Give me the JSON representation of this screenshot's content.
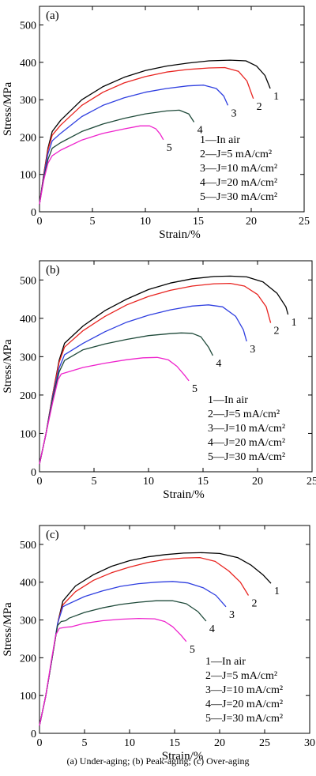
{
  "caption": "(a) Under-aging; (b) Peak-aging; (c) Over-aging",
  "legend_items": [
    "1—In air",
    "2—J=5 mA/cm²",
    "3—J=10 mA/cm²",
    "4—J=20 mA/cm²",
    "5—J=30 mA/cm²"
  ],
  "colors": [
    "#000000",
    "#e8231f",
    "#2f3fe0",
    "#1f4a3a",
    "#ee22cc"
  ],
  "chart_data": [
    {
      "type": "line",
      "panel_label": "(a)",
      "xlabel": "Strain/%",
      "ylabel": "Stress/MPa",
      "xlim": [
        0,
        25
      ],
      "ylim": [
        0,
        550
      ],
      "xticks": [
        0,
        5,
        10,
        15,
        20,
        25
      ],
      "yticks": [
        0,
        100,
        200,
        300,
        400,
        500
      ],
      "series": [
        {
          "label": "1",
          "points": [
            [
              0,
              20
            ],
            [
              0.4,
              100
            ],
            [
              0.8,
              170
            ],
            [
              1.2,
              215
            ],
            [
              2,
              245
            ],
            [
              4,
              300
            ],
            [
              6,
              335
            ],
            [
              8,
              360
            ],
            [
              10,
              378
            ],
            [
              12,
              390
            ],
            [
              14,
              398
            ],
            [
              16,
              404
            ],
            [
              18,
              406
            ],
            [
              19.5,
              404
            ],
            [
              20.5,
              390
            ],
            [
              21.3,
              365
            ],
            [
              21.8,
              330
            ]
          ]
        },
        {
          "label": "2",
          "points": [
            [
              0,
              20
            ],
            [
              0.4,
              100
            ],
            [
              0.8,
              165
            ],
            [
              1.2,
              205
            ],
            [
              2,
              232
            ],
            [
              4,
              285
            ],
            [
              6,
              320
            ],
            [
              8,
              345
            ],
            [
              10,
              362
            ],
            [
              12,
              374
            ],
            [
              14,
              381
            ],
            [
              16,
              385
            ],
            [
              17.5,
              386
            ],
            [
              18.8,
              376
            ],
            [
              19.6,
              350
            ],
            [
              20.2,
              303
            ]
          ]
        },
        {
          "label": "3",
          "points": [
            [
              0,
              20
            ],
            [
              0.4,
              95
            ],
            [
              0.8,
              155
            ],
            [
              1.2,
              190
            ],
            [
              2,
              210
            ],
            [
              4,
              255
            ],
            [
              6,
              285
            ],
            [
              8,
              305
            ],
            [
              10,
              320
            ],
            [
              12,
              330
            ],
            [
              14,
              337
            ],
            [
              15.5,
              339
            ],
            [
              16.7,
              330
            ],
            [
              17.4,
              310
            ],
            [
              17.8,
              285
            ]
          ]
        },
        {
          "label": "4",
          "points": [
            [
              0,
              20
            ],
            [
              0.4,
              90
            ],
            [
              0.8,
              140
            ],
            [
              1.2,
              170
            ],
            [
              2,
              185
            ],
            [
              4,
              215
            ],
            [
              6,
              235
            ],
            [
              8,
              250
            ],
            [
              10,
              262
            ],
            [
              12,
              270
            ],
            [
              13.2,
              272
            ],
            [
              14.1,
              262
            ],
            [
              14.6,
              240
            ]
          ]
        },
        {
          "label": "5",
          "points": [
            [
              0,
              20
            ],
            [
              0.4,
              85
            ],
            [
              0.8,
              130
            ],
            [
              1.2,
              150
            ],
            [
              2,
              165
            ],
            [
              4,
              192
            ],
            [
              6,
              210
            ],
            [
              8,
              222
            ],
            [
              9.5,
              230
            ],
            [
              10.4,
              230
            ],
            [
              11,
              222
            ],
            [
              11.4,
              208
            ],
            [
              11.7,
              193
            ]
          ]
        }
      ],
      "end_labels": [
        {
          "text": "1",
          "x": 21.8,
          "y": 330
        },
        {
          "text": "2",
          "x": 20.2,
          "y": 303
        },
        {
          "text": "3",
          "x": 17.8,
          "y": 285
        },
        {
          "text": "4",
          "x": 14.6,
          "y": 240
        },
        {
          "text": "5",
          "x": 11.7,
          "y": 193
        }
      ]
    },
    {
      "type": "line",
      "panel_label": "(b)",
      "xlabel": "Strain/%",
      "ylabel": "Stress/MPa",
      "xlim": [
        0,
        25
      ],
      "ylim": [
        0,
        550
      ],
      "xticks": [
        0,
        5,
        10,
        15,
        20,
        25
      ],
      "yticks": [
        0,
        100,
        200,
        300,
        400,
        500
      ],
      "series": [
        {
          "label": "1",
          "points": [
            [
              0,
              20
            ],
            [
              0.6,
              100
            ],
            [
              1.2,
              200
            ],
            [
              1.8,
              290
            ],
            [
              2.3,
              335
            ],
            [
              4,
              380
            ],
            [
              6,
              420
            ],
            [
              8,
              450
            ],
            [
              10,
              475
            ],
            [
              12,
              492
            ],
            [
              14,
              503
            ],
            [
              16,
              509
            ],
            [
              17.5,
              510
            ],
            [
              19,
              508
            ],
            [
              20.5,
              495
            ],
            [
              21.8,
              465
            ],
            [
              22.6,
              430
            ],
            [
              22.8,
              410
            ]
          ]
        },
        {
          "label": "2",
          "points": [
            [
              0,
              20
            ],
            [
              0.6,
              100
            ],
            [
              1.2,
              200
            ],
            [
              1.8,
              285
            ],
            [
              2.3,
              325
            ],
            [
              4,
              368
            ],
            [
              6,
              405
            ],
            [
              8,
              435
            ],
            [
              10,
              457
            ],
            [
              12,
              473
            ],
            [
              14,
              484
            ],
            [
              16,
              490
            ],
            [
              17.5,
              491
            ],
            [
              18.8,
              484
            ],
            [
              20,
              462
            ],
            [
              20.8,
              430
            ],
            [
              21.2,
              388
            ]
          ]
        },
        {
          "label": "3",
          "points": [
            [
              0,
              20
            ],
            [
              0.6,
              100
            ],
            [
              1.2,
              195
            ],
            [
              1.8,
              270
            ],
            [
              2.3,
              305
            ],
            [
              4,
              335
            ],
            [
              6,
              365
            ],
            [
              8,
              390
            ],
            [
              10,
              408
            ],
            [
              12,
              422
            ],
            [
              14,
              432
            ],
            [
              15.5,
              435
            ],
            [
              16.8,
              430
            ],
            [
              18,
              405
            ],
            [
              18.7,
              370
            ],
            [
              19,
              340
            ]
          ]
        },
        {
          "label": "4",
          "points": [
            [
              0,
              20
            ],
            [
              0.6,
              100
            ],
            [
              1.2,
              190
            ],
            [
              1.8,
              260
            ],
            [
              2.3,
              290
            ],
            [
              4,
              318
            ],
            [
              6,
              333
            ],
            [
              8,
              345
            ],
            [
              10,
              355
            ],
            [
              12,
              360
            ],
            [
              13,
              362
            ],
            [
              14,
              361
            ],
            [
              14.8,
              352
            ],
            [
              15.5,
              325
            ],
            [
              15.9,
              303
            ]
          ]
        },
        {
          "label": "5",
          "points": [
            [
              0,
              20
            ],
            [
              0.6,
              100
            ],
            [
              1.2,
              180
            ],
            [
              1.7,
              240
            ],
            [
              2,
              255
            ],
            [
              4,
              272
            ],
            [
              6,
              283
            ],
            [
              8,
              292
            ],
            [
              9.5,
              297
            ],
            [
              10.8,
              298
            ],
            [
              11.8,
              292
            ],
            [
              12.6,
              275
            ],
            [
              13.3,
              252
            ],
            [
              13.7,
              237
            ]
          ]
        }
      ],
      "end_labels": [
        {
          "text": "1",
          "x": 22.8,
          "y": 410
        },
        {
          "text": "2",
          "x": 21.2,
          "y": 388
        },
        {
          "text": "3",
          "x": 19.0,
          "y": 340
        },
        {
          "text": "4",
          "x": 15.9,
          "y": 303
        },
        {
          "text": "5",
          "x": 13.7,
          "y": 237
        }
      ]
    },
    {
      "type": "line",
      "panel_label": "(c)",
      "xlabel": "Strain/%",
      "ylabel": "Stress/MPa",
      "xlim": [
        0,
        30
      ],
      "ylim": [
        0,
        550
      ],
      "xticks": [
        0,
        5,
        10,
        15,
        20,
        25,
        30
      ],
      "yticks": [
        0,
        100,
        200,
        300,
        400,
        500
      ],
      "series": [
        {
          "label": "1",
          "points": [
            [
              0,
              20
            ],
            [
              0.7,
              100
            ],
            [
              1.4,
              200
            ],
            [
              2.1,
              300
            ],
            [
              2.6,
              350
            ],
            [
              4,
              390
            ],
            [
              6,
              420
            ],
            [
              8,
              442
            ],
            [
              10,
              457
            ],
            [
              12,
              467
            ],
            [
              14,
              473
            ],
            [
              16,
              477
            ],
            [
              18,
              478
            ],
            [
              20,
              476
            ],
            [
              22,
              465
            ],
            [
              23.5,
              445
            ],
            [
              24.8,
              420
            ],
            [
              25.7,
              397
            ]
          ]
        },
        {
          "label": "2",
          "points": [
            [
              0,
              20
            ],
            [
              0.7,
              100
            ],
            [
              1.4,
              200
            ],
            [
              2.1,
              300
            ],
            [
              2.6,
              340
            ],
            [
              4,
              375
            ],
            [
              6,
              405
            ],
            [
              8,
              425
            ],
            [
              10,
              440
            ],
            [
              12,
              452
            ],
            [
              14,
              460
            ],
            [
              16,
              464
            ],
            [
              17.8,
              465
            ],
            [
              19.5,
              455
            ],
            [
              21,
              430
            ],
            [
              22.3,
              400
            ],
            [
              23.2,
              365
            ]
          ]
        },
        {
          "label": "3",
          "points": [
            [
              0,
              20
            ],
            [
              0.7,
              100
            ],
            [
              1.4,
              200
            ],
            [
              2,
              290
            ],
            [
              2.6,
              335
            ],
            [
              3,
              340
            ],
            [
              5,
              362
            ],
            [
              7,
              377
            ],
            [
              9,
              389
            ],
            [
              11,
              396
            ],
            [
              13,
              400
            ],
            [
              14.8,
              402
            ],
            [
              16.5,
              398
            ],
            [
              18.2,
              385
            ],
            [
              19.6,
              365
            ],
            [
              20.7,
              335
            ]
          ]
        },
        {
          "label": "4",
          "points": [
            [
              0,
              20
            ],
            [
              0.7,
              100
            ],
            [
              1.4,
              200
            ],
            [
              2,
              285
            ],
            [
              2.4,
              296
            ],
            [
              2.9,
              298
            ],
            [
              3.3,
              305
            ],
            [
              5,
              320
            ],
            [
              7,
              332
            ],
            [
              9,
              341
            ],
            [
              11,
              347
            ],
            [
              13,
              351
            ],
            [
              14.8,
              351
            ],
            [
              16.3,
              343
            ],
            [
              17.6,
              322
            ],
            [
              18.5,
              297
            ]
          ]
        },
        {
          "label": "5",
          "points": [
            [
              0,
              20
            ],
            [
              0.7,
              100
            ],
            [
              1.3,
              190
            ],
            [
              1.8,
              260
            ],
            [
              2.2,
              278
            ],
            [
              3,
              281
            ],
            [
              3.5,
              282
            ],
            [
              5,
              291
            ],
            [
              7,
              298
            ],
            [
              9,
              302
            ],
            [
              11,
              304
            ],
            [
              12.8,
              303
            ],
            [
              13.9,
              296
            ],
            [
              14.8,
              282
            ],
            [
              15.7,
              260
            ],
            [
              16.3,
              243
            ]
          ]
        }
      ],
      "end_labels": [
        {
          "text": "1",
          "x": 25.7,
          "y": 397
        },
        {
          "text": "2",
          "x": 23.2,
          "y": 365
        },
        {
          "text": "3",
          "x": 20.7,
          "y": 335
        },
        {
          "text": "4",
          "x": 18.5,
          "y": 297
        },
        {
          "text": "5",
          "x": 16.3,
          "y": 243
        }
      ]
    }
  ]
}
